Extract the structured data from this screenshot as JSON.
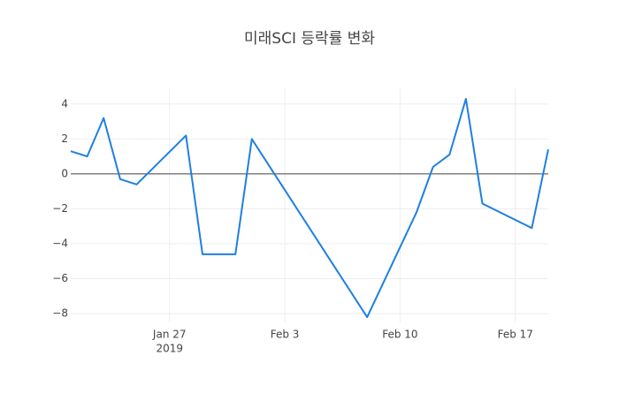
{
  "chart_data": {
    "type": "line",
    "title": "미래SCI 등락률 변화",
    "x": [
      "2019-01-21",
      "2019-01-22",
      "2019-01-23",
      "2019-01-24",
      "2019-01-25",
      "2019-01-28",
      "2019-01-29",
      "2019-01-31",
      "2019-02-01",
      "2019-02-08",
      "2019-02-11",
      "2019-02-12",
      "2019-02-13",
      "2019-02-14",
      "2019-02-15",
      "2019-02-18",
      "2019-02-19"
    ],
    "series": [
      {
        "color": "#1f7fe0",
        "values": [
          1.3,
          1.0,
          3.2,
          -0.3,
          -0.6,
          2.2,
          -4.6,
          -4.6,
          2.0,
          -8.2,
          -2.2,
          0.4,
          1.1,
          4.3,
          -1.7,
          -3.1,
          1.4
        ]
      }
    ],
    "xlim": [
      "2019-01-21",
      "2019-02-19"
    ],
    "xticks": [
      {
        "value": "2019-01-27",
        "label": "Jan 27"
      },
      {
        "value": "2019-02-03",
        "label": "Feb 3"
      },
      {
        "value": "2019-02-10",
        "label": "Feb 10"
      },
      {
        "value": "2019-02-17",
        "label": "Feb 17"
      }
    ],
    "xtick_year": "2019",
    "ylim": [
      -8.5,
      4.9
    ],
    "yticks": [
      {
        "value": -8,
        "label": "−8"
      },
      {
        "value": -6,
        "label": "−6"
      },
      {
        "value": -4,
        "label": "−4"
      },
      {
        "value": -2,
        "label": "−2"
      },
      0,
      2,
      4
    ],
    "grid": true,
    "zeroline": true
  }
}
